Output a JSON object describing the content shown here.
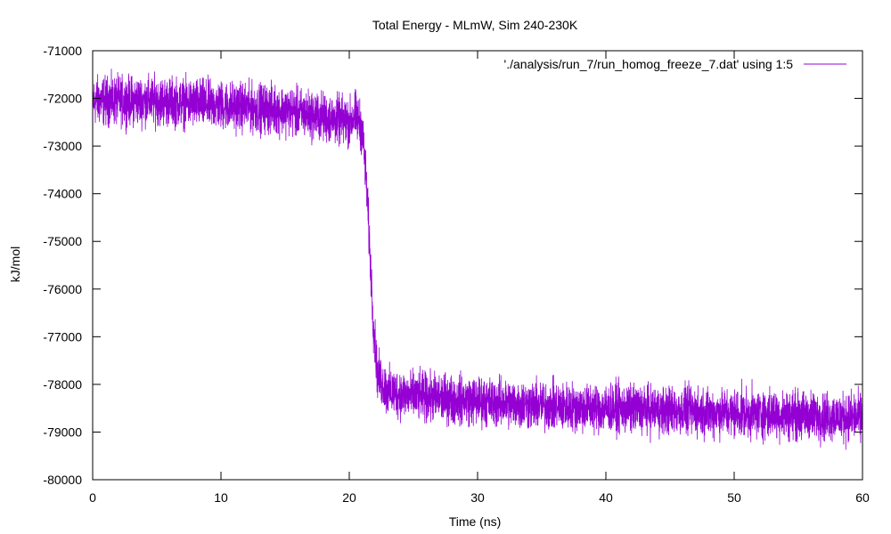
{
  "colors": {
    "series": "#9400d3",
    "axis": "#000000",
    "background": "#ffffff"
  },
  "chart_data": {
    "type": "line",
    "title": "Total Energy - MLmW, Sim 240-230K",
    "xlabel": "Time (ns)",
    "ylabel": "kJ/mol",
    "xlim": [
      0,
      60
    ],
    "ylim": [
      -80000,
      -71000
    ],
    "x_ticks": [
      0,
      10,
      20,
      30,
      40,
      50,
      60
    ],
    "y_ticks": [
      -80000,
      -79000,
      -78000,
      -77000,
      -76000,
      -75000,
      -74000,
      -73000,
      -72000,
      -71000
    ],
    "grid": false,
    "legend_position": "top-right",
    "series": [
      {
        "name": "'./analysis/run_7/run_homog_freeze_7.dat' using 1:5",
        "color": "#9400d3",
        "noise_amplitude": 250,
        "x": [
          0,
          5,
          10,
          15,
          18,
          20,
          20.5,
          21,
          21.3,
          21.6,
          21.9,
          22.2,
          22.6,
          23,
          25,
          30,
          35,
          40,
          45,
          50,
          55,
          60
        ],
        "y": [
          -72050,
          -72050,
          -72150,
          -72250,
          -72400,
          -72500,
          -72350,
          -72650,
          -73600,
          -75200,
          -76800,
          -77800,
          -78000,
          -78150,
          -78250,
          -78350,
          -78450,
          -78500,
          -78550,
          -78600,
          -78650,
          -78700
        ]
      }
    ]
  }
}
